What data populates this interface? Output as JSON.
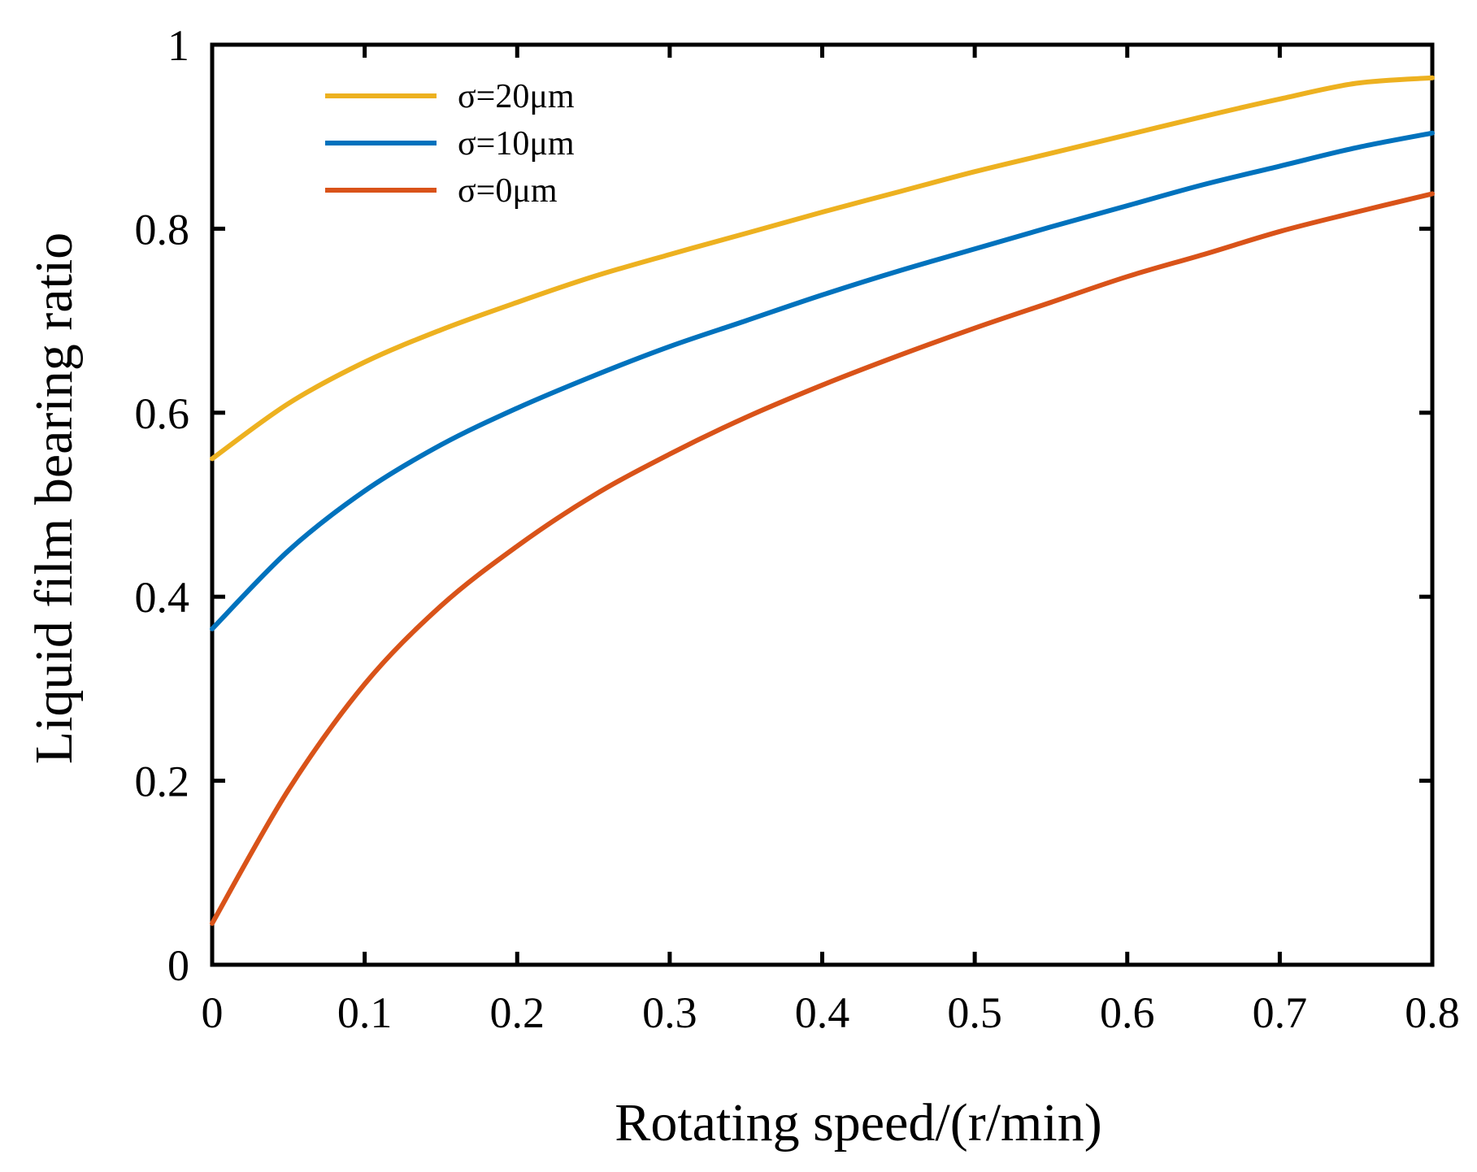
{
  "chart_data": {
    "type": "line",
    "title": "",
    "xlabel": "Rotating speed/(r/min)",
    "ylabel": "Liquid film bearing ratio",
    "xlim": [
      0,
      0.8
    ],
    "ylim": [
      0,
      1
    ],
    "x_ticks": [
      "0",
      "0.1",
      "0.2",
      "0.3",
      "0.4",
      "0.5",
      "0.6",
      "0.7",
      "0.8"
    ],
    "y_ticks": [
      "0",
      "0.2",
      "0.4",
      "0.6",
      "0.8",
      "1"
    ],
    "grid": false,
    "legend_position": "top-left",
    "x": [
      0,
      0.05,
      0.1,
      0.15,
      0.2,
      0.25,
      0.3,
      0.35,
      0.4,
      0.45,
      0.5,
      0.55,
      0.6,
      0.65,
      0.7,
      0.75,
      0.8
    ],
    "series": [
      {
        "name": "σ=20μm",
        "color": "#EDB120",
        "values": [
          0.55,
          0.61,
          0.655,
          0.69,
          0.72,
          0.748,
          0.772,
          0.795,
          0.818,
          0.84,
          0.862,
          0.882,
          0.902,
          0.922,
          0.941,
          0.958,
          0.964
        ]
      },
      {
        "name": "σ=10μm",
        "color": "#0072BD",
        "values": [
          0.365,
          0.45,
          0.515,
          0.565,
          0.605,
          0.64,
          0.672,
          0.7,
          0.728,
          0.754,
          0.778,
          0.802,
          0.825,
          0.848,
          0.868,
          0.888,
          0.904
        ]
      },
      {
        "name": "σ=0μm",
        "color": "#D95319",
        "values": [
          0.045,
          0.19,
          0.305,
          0.39,
          0.455,
          0.51,
          0.555,
          0.595,
          0.63,
          0.662,
          0.692,
          0.72,
          0.748,
          0.772,
          0.797,
          0.818,
          0.838
        ]
      }
    ]
  }
}
